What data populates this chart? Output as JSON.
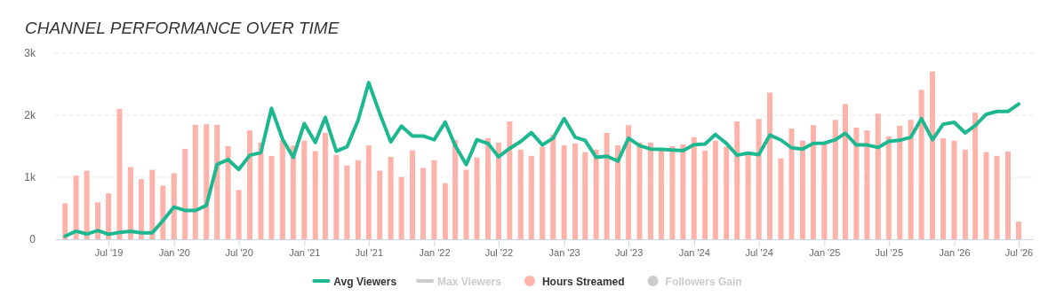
{
  "chart_data": {
    "type": "bar",
    "title": "CHANNEL PERFORMANCE OVER TIME",
    "x": [
      "2019-03",
      "2019-04",
      "2019-05",
      "2019-06",
      "2019-07",
      "2019-08",
      "2019-09",
      "2019-10",
      "2019-11",
      "2019-12",
      "2020-01",
      "2020-02",
      "2020-03",
      "2020-04",
      "2020-05",
      "2020-06",
      "2020-07",
      "2020-08",
      "2020-09",
      "2020-10",
      "2020-11",
      "2020-12",
      "2021-01",
      "2021-02",
      "2021-03",
      "2021-04",
      "2021-05",
      "2021-06",
      "2021-07",
      "2021-08",
      "2021-09",
      "2021-10",
      "2021-11",
      "2021-12",
      "2022-01",
      "2022-02",
      "2022-03",
      "2022-04",
      "2022-05",
      "2022-06",
      "2022-07",
      "2022-08",
      "2022-09",
      "2022-10",
      "2022-11",
      "2022-12",
      "2023-01",
      "2023-02",
      "2023-03",
      "2023-04",
      "2023-05",
      "2023-06",
      "2023-07",
      "2023-08",
      "2023-09",
      "2023-10",
      "2023-11",
      "2023-12",
      "2024-01",
      "2024-02",
      "2024-03",
      "2024-04",
      "2024-05",
      "2024-06",
      "2024-07",
      "2024-08",
      "2024-09",
      "2024-10",
      "2024-11",
      "2024-12",
      "2025-01",
      "2025-02",
      "2025-03",
      "2025-04",
      "2025-05",
      "2025-06",
      "2025-07",
      "2025-08",
      "2025-09",
      "2025-10",
      "2025-11",
      "2025-12",
      "2026-01",
      "2026-02",
      "2026-03",
      "2026-04",
      "2026-05",
      "2026-06",
      "2026-07"
    ],
    "series": [
      {
        "name": "Avg Viewers",
        "type": "line",
        "color": "#1db890",
        "values": [
          50,
          130,
          85,
          140,
          80,
          110,
          130,
          105,
          105,
          300,
          520,
          465,
          465,
          545,
          1205,
          1285,
          1125,
          1355,
          1395,
          2110,
          1615,
          1320,
          1865,
          1560,
          1965,
          1420,
          1490,
          1915,
          2525,
          2030,
          1570,
          1825,
          1665,
          1665,
          1605,
          1890,
          1510,
          1205,
          1605,
          1545,
          1330,
          1465,
          1575,
          1720,
          1520,
          1630,
          1945,
          1645,
          1595,
          1320,
          1340,
          1260,
          1630,
          1510,
          1455,
          1450,
          1440,
          1430,
          1525,
          1535,
          1690,
          1545,
          1355,
          1390,
          1365,
          1680,
          1600,
          1475,
          1455,
          1545,
          1550,
          1605,
          1710,
          1520,
          1520,
          1480,
          1580,
          1595,
          1645,
          1945,
          1605,
          1855,
          1885,
          1715,
          1835,
          2015,
          2060,
          2060,
          2180
        ]
      },
      {
        "name": "Max Viewers",
        "type": "line",
        "color": "#cccccc",
        "values": [
          null,
          null,
          null,
          null,
          null,
          null,
          null,
          null,
          null,
          null,
          null,
          null,
          null,
          null,
          null,
          null,
          null,
          null,
          null,
          null,
          null,
          null,
          null,
          null,
          null,
          null,
          null,
          null,
          null,
          null,
          null,
          null,
          null,
          null,
          null,
          null,
          null,
          null,
          null,
          null,
          null,
          null,
          null,
          null,
          null,
          null,
          null,
          null,
          null,
          null,
          null,
          null,
          null,
          null,
          null,
          null,
          null,
          null,
          null,
          null,
          null,
          null,
          null,
          null,
          null,
          null,
          null,
          null,
          null,
          null,
          null,
          null,
          null,
          null,
          null,
          null,
          null,
          null,
          null,
          null,
          null,
          null,
          null,
          null,
          null,
          null,
          null,
          null,
          null
        ]
      },
      {
        "name": "Hours Streamed",
        "color": "#fdb3aa",
        "values": [
          580,
          1025,
          1105,
          595,
          740,
          2100,
          1165,
          970,
          1120,
          865,
          1065,
          1460,
          1845,
          1855,
          1845,
          1500,
          795,
          1755,
          1560,
          1345,
          1600,
          1510,
          1590,
          1420,
          1715,
          1360,
          1190,
          1275,
          1515,
          1105,
          1330,
          1005,
          1435,
          1150,
          1275,
          905,
          1600,
          1120,
          1320,
          1630,
          1560,
          1900,
          1445,
          1345,
          1490,
          1685,
          1515,
          1545,
          1405,
          1445,
          1715,
          1515,
          1840,
          1560,
          1560,
          1430,
          1500,
          1530,
          1645,
          1430,
          1590,
          1490,
          1900,
          1370,
          1940,
          2365,
          1305,
          1785,
          1590,
          1840,
          1560,
          1925,
          2180,
          1800,
          1755,
          2025,
          1660,
          1830,
          1925,
          2410,
          2705,
          1630,
          1590,
          1445,
          2040,
          1405,
          1345,
          1415,
          285
        ]
      },
      {
        "name": "Followers Gain",
        "type": "scatter",
        "color": "#cccccc",
        "values": [
          null,
          null,
          null,
          null,
          null,
          null,
          null,
          null,
          null,
          null,
          null,
          null,
          null,
          null,
          null,
          null,
          null,
          null,
          null,
          null,
          null,
          null,
          null,
          null,
          null,
          null,
          null,
          null,
          null,
          null,
          null,
          null,
          null,
          null,
          null,
          null,
          null,
          null,
          null,
          null,
          null,
          null,
          null,
          null,
          null,
          null,
          null,
          null,
          null,
          null,
          null,
          null,
          null,
          null,
          null,
          null,
          null,
          null,
          null,
          null,
          null,
          null,
          null,
          null,
          null,
          null,
          null,
          null,
          null,
          null,
          null,
          null,
          null,
          null,
          null,
          null,
          null,
          null,
          null,
          null,
          null,
          null,
          null,
          null,
          null,
          null,
          null,
          null,
          null
        ]
      }
    ],
    "xlim": [
      "2019-02-01",
      "2026-08-10"
    ],
    "xticks": [
      {
        "value": "2019-07",
        "label": "Jul '19"
      },
      {
        "value": "2020-01",
        "label": "Jan '20"
      },
      {
        "value": "2020-07",
        "label": "Jul '20"
      },
      {
        "value": "2021-01",
        "label": "Jan '21"
      },
      {
        "value": "2021-07",
        "label": "Jul '21"
      },
      {
        "value": "2022-01",
        "label": "Jan '22"
      },
      {
        "value": "2022-07",
        "label": "Jul '22"
      },
      {
        "value": "2023-01",
        "label": "Jan '23"
      },
      {
        "value": "2023-07",
        "label": "Jul '23"
      },
      {
        "value": "2024-01",
        "label": "Jan '24"
      },
      {
        "value": "2024-07",
        "label": "Jul '24"
      },
      {
        "value": "2025-01",
        "label": "Jan '25"
      },
      {
        "value": "2025-07",
        "label": "Jul '25"
      },
      {
        "value": "2026-01",
        "label": "Jan '26"
      },
      {
        "value": "2026-07",
        "label": "Jul '26"
      }
    ],
    "ylim": [
      0,
      3000
    ],
    "yticks": [
      {
        "value": 0,
        "label": "0"
      },
      {
        "value": 1000,
        "label": "1k"
      },
      {
        "value": 2000,
        "label": "2k"
      },
      {
        "value": 3000,
        "label": "3k"
      }
    ],
    "grid": "y",
    "legend": "bottom"
  }
}
